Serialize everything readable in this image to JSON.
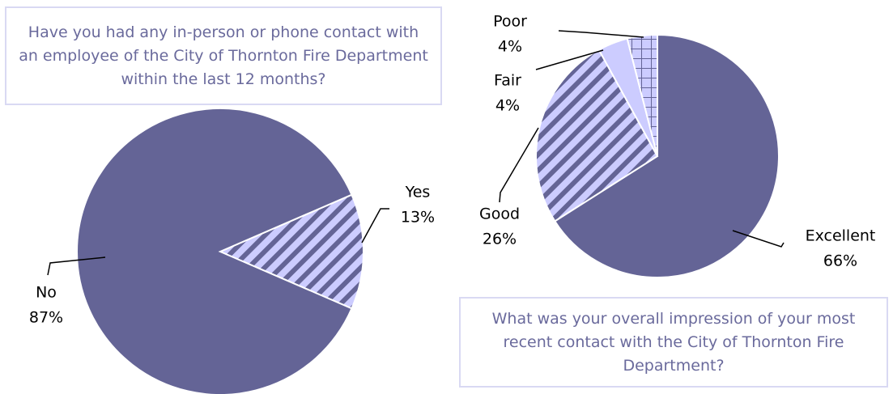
{
  "chart_data": [
    {
      "type": "pie",
      "title": "Have you had any in-person or phone contact with an employee of the City of Thornton Fire Department within the last 12 months?",
      "categories": [
        "Yes",
        "No"
      ],
      "values": [
        13,
        87
      ],
      "value_labels": [
        "13%",
        "87%"
      ],
      "colors": [
        "#ccccff",
        "#646496"
      ]
    },
    {
      "type": "pie",
      "title": "What was your overall impression of  your most recent contact with the City of Thornton Fire Department?",
      "categories": [
        "Excellent",
        "Good",
        "Fair",
        "Poor"
      ],
      "values": [
        66,
        26,
        4,
        4
      ],
      "value_labels": [
        "66%",
        "26%",
        "4%",
        "4%"
      ],
      "colors": [
        "#646496",
        "#ccccff",
        "#ccccff",
        "#ccccff"
      ]
    }
  ]
}
